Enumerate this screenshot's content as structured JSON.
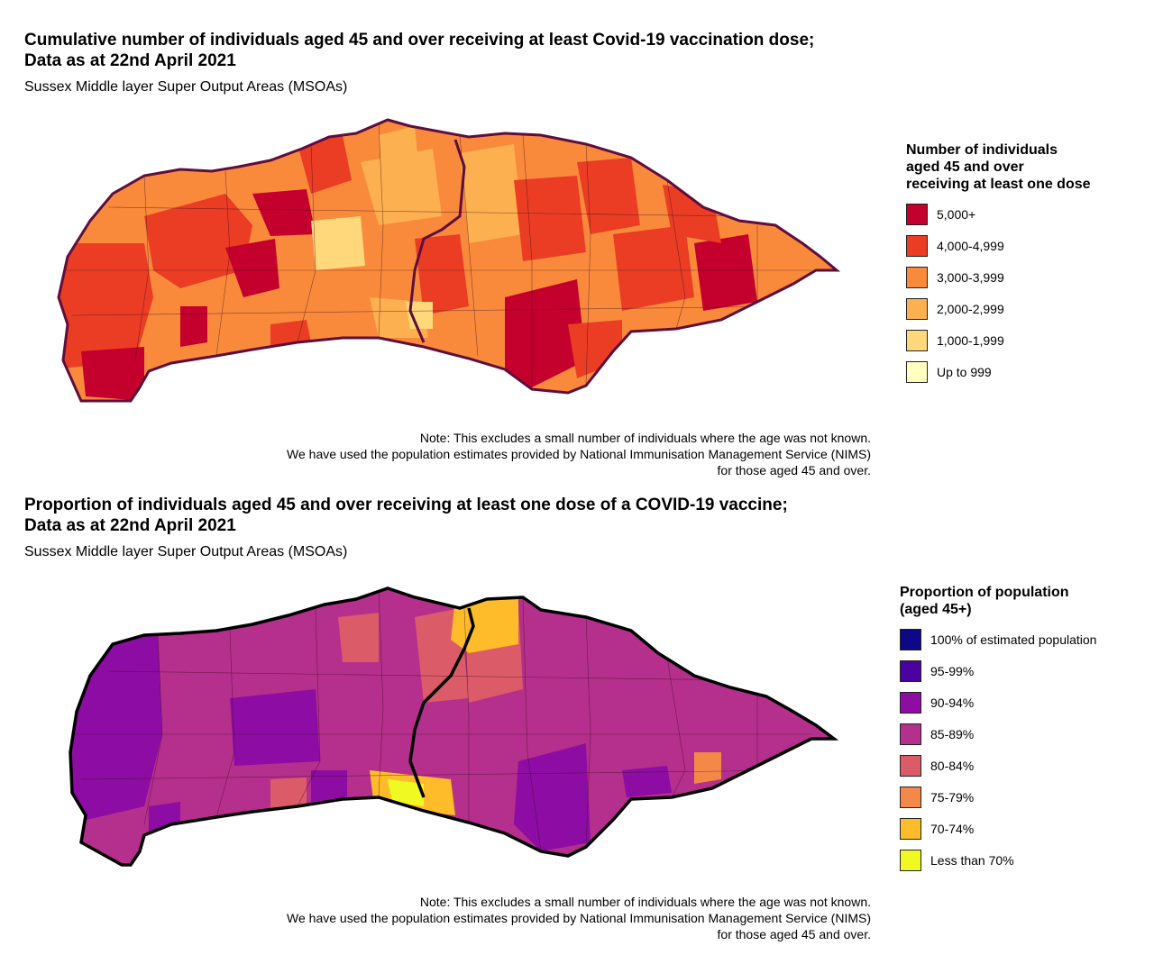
{
  "top": {
    "title_line1": "Cumulative number of individuals aged 45 and over receiving at least Covid-19 vaccination dose;",
    "title_line2": "Data as at 22nd April 2021",
    "subtitle": "Sussex Middle layer Super Output Areas (MSOAs)",
    "legend": {
      "title_lines": [
        "Number of individuals",
        "aged 45 and over",
        "receiving at least one dose"
      ],
      "items": [
        {
          "label": "5,000+",
          "color": "#c4002d"
        },
        {
          "label": "4,000-4,999",
          "color": "#ea3d24"
        },
        {
          "label": "3,000-3,999",
          "color": "#f98a3c"
        },
        {
          "label": "2,000-2,999",
          "color": "#fdb04f"
        },
        {
          "label": "1,000-1,999",
          "color": "#fed87b"
        },
        {
          "label": "Up to 999",
          "color": "#ffffbf"
        }
      ]
    },
    "note_lines": [
      "Note: This excludes a small number of individuals where the age was not known.",
      "We have used the population estimates provided by National Immunisation Management Service (NIMS)",
      "for those aged 45 and over."
    ],
    "border_color": "#5e0e3d"
  },
  "bottom": {
    "title_line1": "Proportion of individuals aged 45 and over receiving at least one dose of a COVID-19 vaccine;",
    "title_line2": "Data as at 22nd April 2021",
    "subtitle": "Sussex Middle layer Super Output Areas (MSOAs)",
    "legend": {
      "title_lines": [
        "Proportion of population",
        "(aged 45+)"
      ],
      "items": [
        {
          "label": "100% of estimated population",
          "color": "#0d0887"
        },
        {
          "label": "95-99%",
          "color": "#4c02a1"
        },
        {
          "label": "90-94%",
          "color": "#8d0ca3"
        },
        {
          "label": "85-89%",
          "color": "#b52f8c"
        },
        {
          "label": "80-84%",
          "color": "#db5c68"
        },
        {
          "label": "75-79%",
          "color": "#f48849"
        },
        {
          "label": "70-74%",
          "color": "#febc2a"
        },
        {
          "label": "Less than 70%",
          "color": "#f0f921"
        }
      ]
    },
    "note_lines": [
      "Note: This excludes a small number of individuals where the age was not known.",
      "We have used the population estimates provided by National Immunisation Management Service (NIMS)",
      "for those aged 45 and over."
    ],
    "border_color": "#000000"
  }
}
